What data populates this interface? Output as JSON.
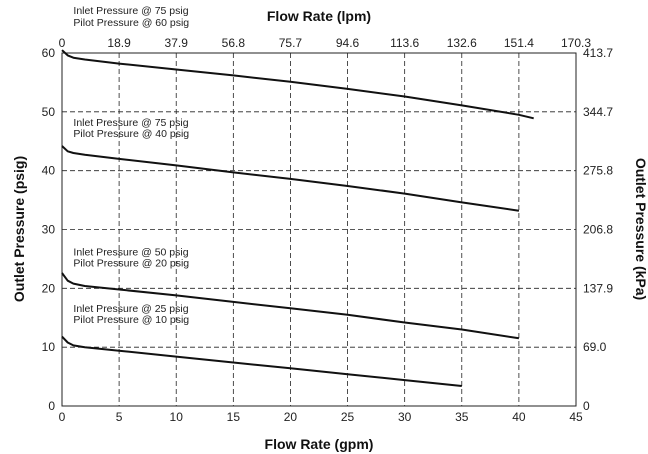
{
  "chart_data": {
    "type": "line",
    "xlabel": "Flow Rate (gpm)",
    "ylabel": "Outlet Pressure (psig)",
    "x2label": "Flow Rate (lpm)",
    "y2label": "Outlet Pressure (kPa)",
    "xlim": [
      0,
      45
    ],
    "ylim": [
      0,
      60
    ],
    "x_ticks": [
      "0",
      "5",
      "10",
      "15",
      "20",
      "25",
      "30",
      "35",
      "40",
      "45"
    ],
    "y_ticks": [
      "0",
      "10",
      "20",
      "30",
      "40",
      "50",
      "60"
    ],
    "x2_ticks": [
      "0",
      "18.9",
      "37.9",
      "56.8",
      "75.7",
      "94.6",
      "113.6",
      "132.6",
      "151.4",
      "170.3"
    ],
    "y2_ticks": [
      "0",
      "69.0",
      "137.9",
      "206.8",
      "275.8",
      "344.7",
      "413.7"
    ],
    "grid": true,
    "series": [
      {
        "annotation": [
          "Inlet Pressure @ 75 psig",
          "Pilot Pressure @ 60 psig"
        ],
        "x": [
          0,
          0.5,
          1,
          2,
          5,
          10,
          15,
          20,
          25,
          30,
          35,
          40,
          41.3
        ],
        "y": [
          60.5,
          59.6,
          59.2,
          58.9,
          58.2,
          57.2,
          56.2,
          55.1,
          53.9,
          52.6,
          51.1,
          49.5,
          48.9
        ]
      },
      {
        "annotation": [
          "Inlet Pressure @ 75 psig",
          "Pilot Pressure @ 40 psig"
        ],
        "x": [
          0,
          0.5,
          1,
          2,
          5,
          10,
          15,
          20,
          25,
          30,
          35,
          40
        ],
        "y": [
          44.2,
          43.3,
          43.0,
          42.7,
          42.0,
          40.9,
          39.7,
          38.6,
          37.4,
          36.1,
          34.6,
          33.2
        ]
      },
      {
        "annotation": [
          "Inlet Pressure @ 50 psig",
          "Pilot Pressure @ 20 psig"
        ],
        "x": [
          0,
          0.5,
          1,
          2,
          5,
          10,
          15,
          20,
          25,
          30,
          35,
          40
        ],
        "y": [
          22.6,
          21.3,
          20.8,
          20.4,
          19.8,
          18.8,
          17.7,
          16.6,
          15.5,
          14.2,
          13.0,
          11.5
        ]
      },
      {
        "annotation": [
          "Inlet Pressure @ 25 psig",
          "Pilot Pressure @ 10 psig"
        ],
        "x": [
          0,
          0.5,
          1,
          2,
          5,
          10,
          15,
          20,
          25,
          30,
          35
        ],
        "y": [
          11.8,
          10.8,
          10.3,
          10.0,
          9.4,
          8.4,
          7.4,
          6.4,
          5.4,
          4.4,
          3.4
        ]
      }
    ]
  }
}
